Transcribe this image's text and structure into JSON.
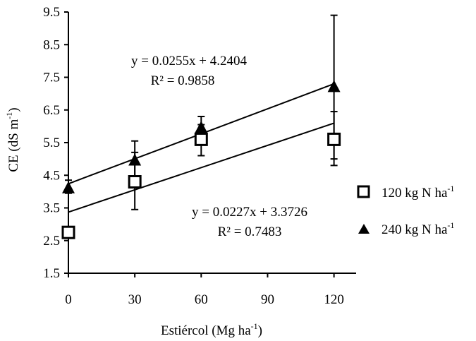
{
  "chart_data": {
    "type": "scatter",
    "xlabel": "Estiércol (Mg ha",
    "xlabel_sup": "-1",
    "xlabel_end": ")",
    "ylabel": "CE (dS m",
    "ylabel_sup": "-1",
    "ylabel_end": ")",
    "xlim": [
      0,
      130
    ],
    "ylim": [
      1.5,
      9.5
    ],
    "xticks": [
      0,
      30,
      60,
      90,
      120
    ],
    "xtick_labels": [
      "0",
      "30",
      "60",
      "90",
      "120"
    ],
    "yticks": [
      1.5,
      2.5,
      3.5,
      4.5,
      5.5,
      6.5,
      7.5,
      8.5,
      9.5
    ],
    "ytick_labels": [
      "1.5",
      "2.5",
      "3.5",
      "4.5",
      "5.5",
      "6.5",
      "7.5",
      "8.5",
      "9.5"
    ],
    "grid": false,
    "legend_position": "right",
    "series": [
      {
        "name": "120 kg N ha",
        "name_sup": "-1",
        "marker": "square-open",
        "x": [
          0,
          30,
          60,
          120
        ],
        "y": [
          2.75,
          4.3,
          5.6,
          5.6
        ],
        "err_low": [
          2.6,
          3.45,
          5.1,
          4.8
        ],
        "err_high": [
          2.9,
          5.2,
          6.05,
          6.45
        ],
        "trendline": {
          "slope": 0.0227,
          "intercept": 3.3726,
          "x_range": [
            0,
            120
          ]
        },
        "equation": "y = 0.0227x + 3.3726",
        "r2": "R² = 0.7483"
      },
      {
        "name": "240 kg N ha",
        "name_sup": "-1",
        "marker": "triangle-filled",
        "x": [
          0,
          30,
          60,
          120
        ],
        "y": [
          4.1,
          4.95,
          5.95,
          7.2
        ],
        "err_low": [
          3.95,
          4.35,
          5.6,
          5.0
        ],
        "err_high": [
          4.35,
          5.55,
          6.3,
          9.4
        ],
        "trendline": {
          "slope": 0.0255,
          "intercept": 4.2404,
          "x_range": [
            0,
            120
          ]
        },
        "equation": "y = 0.0255x + 4.2404",
        "r2": "R² = 0.9858"
      }
    ]
  }
}
